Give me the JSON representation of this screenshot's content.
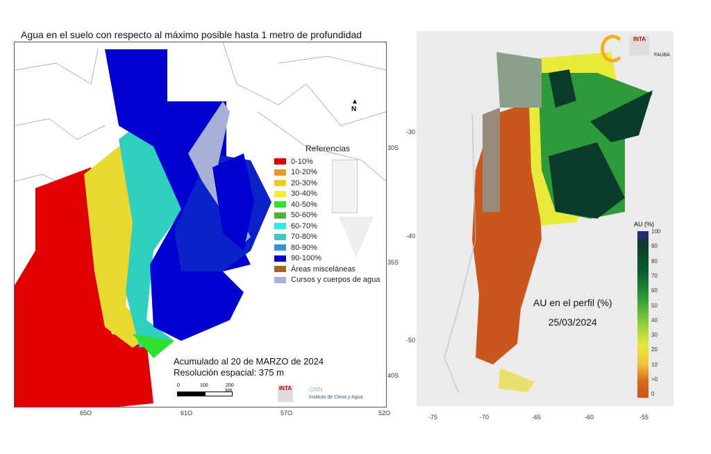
{
  "left_map": {
    "title": "Agua en el suelo con respecto al máximo posible hasta 1 metro de profundidad",
    "north_label": "N",
    "legend": {
      "title": "Referencias",
      "items": [
        {
          "label": "0-10%",
          "color": "#e00000"
        },
        {
          "label": "10-20%",
          "color": "#e8952a"
        },
        {
          "label": "20-30%",
          "color": "#f0c828"
        },
        {
          "label": "30-40%",
          "color": "#f0f030"
        },
        {
          "label": "40-50%",
          "color": "#30e030"
        },
        {
          "label": "50-60%",
          "color": "#50b040"
        },
        {
          "label": "60-70%",
          "color": "#30e8e8"
        },
        {
          "label": "70-80%",
          "color": "#40c8c0"
        },
        {
          "label": "80-90%",
          "color": "#3890d8"
        },
        {
          "label": "90-100%",
          "color": "#0000d0"
        },
        {
          "label": "Áreas misceláneas",
          "color": "#a0642a"
        },
        {
          "label": "Cursos y cuerpos de agua",
          "color": "#a8b0d8"
        }
      ]
    },
    "accumulated": "Acumulado al 20 de MARZO de 2024",
    "resolution": "Resolución espacial: 375 m",
    "scale": {
      "labels": [
        "0",
        "100",
        "200 km"
      ]
    },
    "lat_labels": [
      "30S",
      "35S",
      "40S"
    ],
    "lon_labels": [
      "65O",
      "61O",
      "57O",
      "52O"
    ],
    "logos": {
      "inta": "INTA",
      "cirn": "CIRN",
      "institute": "Instituto de Clima y Agua"
    }
  },
  "right_map": {
    "title_line1": "AU en el perfil (%)",
    "date": "25/03/2024",
    "colorbar_title": "AU (%)",
    "colorbar_labels": [
      "100",
      "90",
      "80",
      "70",
      "60",
      "50",
      "40",
      "30",
      "20",
      "10",
      ">0",
      "0"
    ],
    "lat_labels": [
      "-30",
      "-40",
      "-50"
    ],
    "lon_labels": [
      "-75",
      "-70",
      "-65",
      "-60",
      "-55"
    ],
    "logos": {
      "inta": "INTA",
      "fauba": "FAUBA"
    }
  }
}
